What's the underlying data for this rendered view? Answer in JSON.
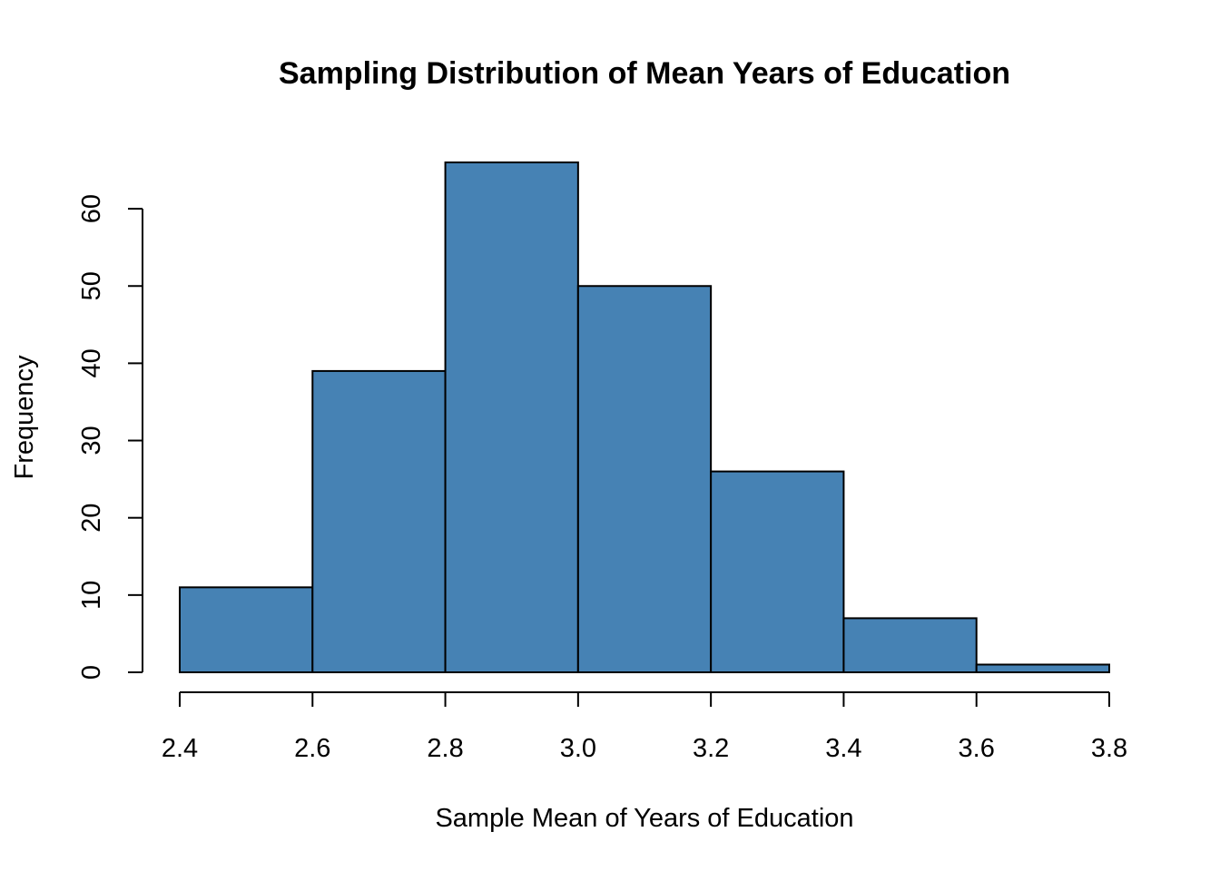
{
  "chart_data": {
    "type": "bar",
    "subtype": "histogram",
    "title": "Sampling Distribution of Mean Years of Education",
    "xlabel": "Sample Mean of Years of Education",
    "ylabel": "Frequency",
    "bin_edges": [
      2.4,
      2.6,
      2.8,
      3.0,
      3.2,
      3.4,
      3.6,
      3.8
    ],
    "values": [
      11,
      39,
      66,
      50,
      26,
      7,
      1
    ],
    "xlim": [
      2.4,
      3.8
    ],
    "ylim": [
      0,
      66
    ],
    "x_ticks": [
      "2.4",
      "2.6",
      "2.8",
      "3.0",
      "3.2",
      "3.4",
      "3.6",
      "3.8"
    ],
    "y_ticks": [
      "0",
      "10",
      "20",
      "30",
      "40",
      "50",
      "60"
    ],
    "bar_color": "#4682b4",
    "grid": false,
    "legend": "none"
  }
}
